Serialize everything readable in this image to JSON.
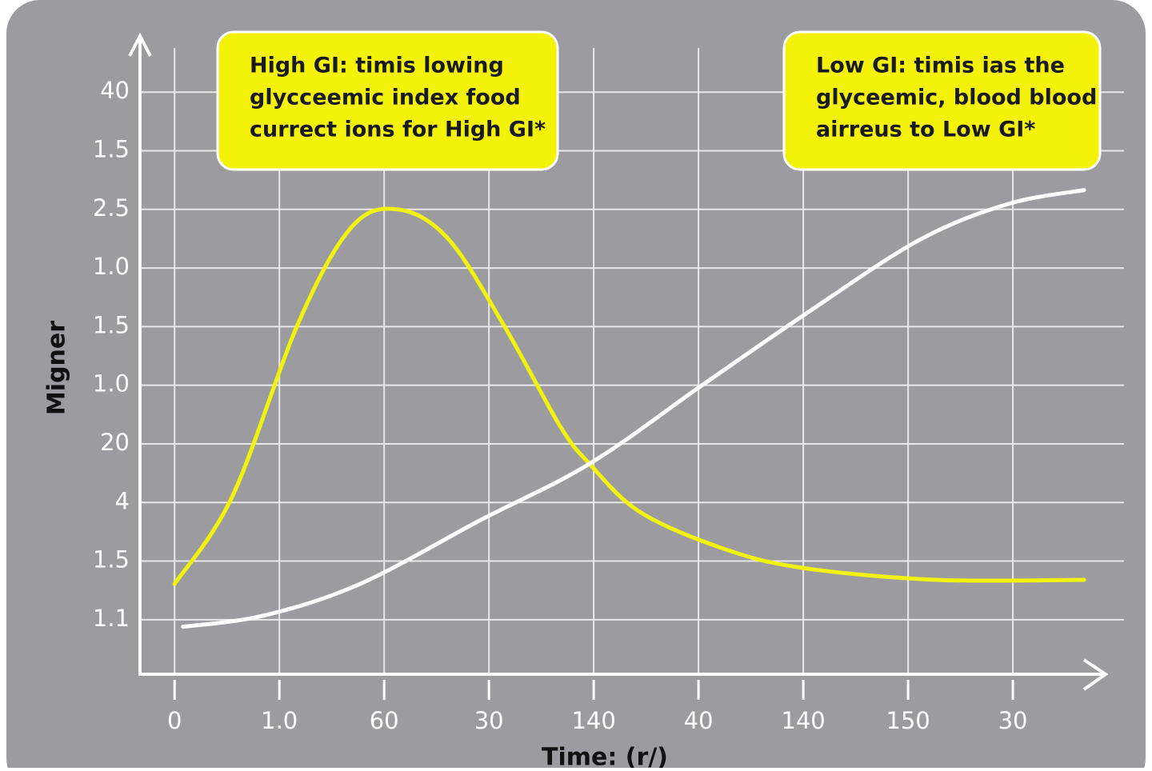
{
  "chart_data": {
    "type": "line",
    "y_label": "Migner",
    "x_label": "Time: (r/)",
    "annotations": [
      [
        "High GI:  timis lowing",
        "glycceemic index  food",
        "currect ions for High GI*"
      ],
      [
        "Low GI: timis ias the",
        "glyceemic, blood blood",
        "airreus to Low GI*"
      ]
    ],
    "xlim": [
      -0.33,
      8.87
    ],
    "ylim": [
      0.07,
      10.89
    ],
    "xticks": [
      {
        "value": 0,
        "label": "0"
      },
      {
        "value": 1,
        "label": "1.0"
      },
      {
        "value": 2,
        "label": "60"
      },
      {
        "value": 3,
        "label": "30"
      },
      {
        "value": 4,
        "label": "140"
      },
      {
        "value": 5,
        "label": "40"
      },
      {
        "value": 6,
        "label": "140"
      },
      {
        "value": 7,
        "label": "150"
      },
      {
        "value": 8,
        "label": "30"
      }
    ],
    "yticks": [
      {
        "value": 1,
        "label": "1.1"
      },
      {
        "value": 2,
        "label": "1.5"
      },
      {
        "value": 3,
        "label": "4"
      },
      {
        "value": 4,
        "label": "20"
      },
      {
        "value": 5,
        "label": "1.0"
      },
      {
        "value": 6,
        "label": "1.5"
      },
      {
        "value": 7,
        "label": "1.0"
      },
      {
        "value": 8,
        "label": "2.5"
      },
      {
        "value": 9,
        "label": "1.5"
      },
      {
        "value": 10,
        "label": "40"
      }
    ],
    "grid": true,
    "series": [
      {
        "color": "#f2f20f",
        "x": [
          0,
          0.55,
          1.19,
          1.69,
          2.13,
          2.61,
          3.15,
          3.68,
          3.96,
          4.44,
          5.21,
          5.97,
          7.27,
          8.68
        ],
        "values": [
          1.61,
          3.1,
          6.1,
          7.7,
          8.0,
          7.5,
          6.0,
          4.3,
          3.66,
          2.84,
          2.23,
          1.89,
          1.68,
          1.68
        ]
      },
      {
        "color": "#ffffff",
        "x": [
          0.08,
          0.85,
          1.77,
          2.92,
          3.96,
          5.05,
          6.05,
          7.11,
          7.95,
          8.68
        ],
        "values": [
          0.88,
          1.07,
          1.61,
          2.7,
          3.66,
          5.02,
          6.25,
          7.48,
          8.09,
          8.33
        ]
      }
    ]
  }
}
